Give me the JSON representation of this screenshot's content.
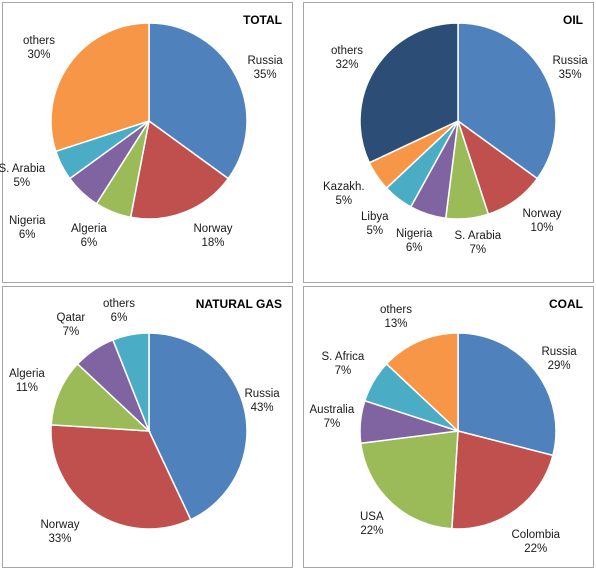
{
  "chart_data": [
    {
      "type": "pie",
      "title": "TOTAL",
      "start": "12 o'clock, clockwise",
      "slices": [
        {
          "label": "Russia",
          "pct_label": "35%",
          "value": 35,
          "color": "#4f81bd"
        },
        {
          "label": "Norway",
          "pct_label": "18%",
          "value": 18,
          "color": "#c0504d"
        },
        {
          "label": "Algeria",
          "pct_label": "6%",
          "value": 6,
          "color": "#9bbb59"
        },
        {
          "label": "Nigeria",
          "pct_label": "6%",
          "value": 6,
          "color": "#8064a2"
        },
        {
          "label": "S. Arabia",
          "pct_label": "5%",
          "value": 5,
          "color": "#4bacc6"
        },
        {
          "label": "others",
          "pct_label": "30%",
          "value": 30,
          "color": "#f79646"
        }
      ]
    },
    {
      "type": "pie",
      "title": "OIL",
      "start": "12 o'clock, clockwise",
      "slices": [
        {
          "label": "Russia",
          "pct_label": "35%",
          "value": 35,
          "color": "#4f81bd"
        },
        {
          "label": "Norway",
          "pct_label": "10%",
          "value": 10,
          "color": "#c0504d"
        },
        {
          "label": "S. Arabia",
          "pct_label": "7%",
          "value": 7,
          "color": "#9bbb59"
        },
        {
          "label": "Nigeria",
          "pct_label": "6%",
          "value": 6,
          "color": "#8064a2"
        },
        {
          "label": "Libya",
          "pct_label": "5%",
          "value": 5,
          "color": "#4bacc6"
        },
        {
          "label": "Kazakh.",
          "pct_label": "5%",
          "value": 5,
          "color": "#f79646"
        },
        {
          "label": "others",
          "pct_label": "32%",
          "value": 32,
          "color": "#2c4d75"
        }
      ]
    },
    {
      "type": "pie",
      "title": "NATURAL GAS",
      "start": "12 o'clock, clockwise",
      "slices": [
        {
          "label": "Russia",
          "pct_label": "43%",
          "value": 43,
          "color": "#4f81bd"
        },
        {
          "label": "Norway",
          "pct_label": "33%",
          "value": 33,
          "color": "#c0504d"
        },
        {
          "label": "Algeria",
          "pct_label": "11%",
          "value": 11,
          "color": "#9bbb59"
        },
        {
          "label": "Qatar",
          "pct_label": "7%",
          "value": 7,
          "color": "#8064a2"
        },
        {
          "label": "others",
          "pct_label": "6%",
          "value": 6,
          "color": "#4bacc6"
        }
      ]
    },
    {
      "type": "pie",
      "title": "COAL",
      "start": "12 o'clock, clockwise",
      "slices": [
        {
          "label": "Russia",
          "pct_label": "29%",
          "value": 29,
          "color": "#4f81bd"
        },
        {
          "label": "Colombia",
          "pct_label": "22%",
          "value": 22,
          "color": "#c0504d"
        },
        {
          "label": "USA",
          "pct_label": "22%",
          "value": 22,
          "color": "#9bbb59"
        },
        {
          "label": "Australia",
          "pct_label": "7%",
          "value": 7,
          "color": "#8064a2"
        },
        {
          "label": "S. Africa",
          "pct_label": "7%",
          "value": 7,
          "color": "#4bacc6"
        },
        {
          "label": "others",
          "pct_label": "13%",
          "value": 13,
          "color": "#f79646"
        }
      ]
    }
  ]
}
